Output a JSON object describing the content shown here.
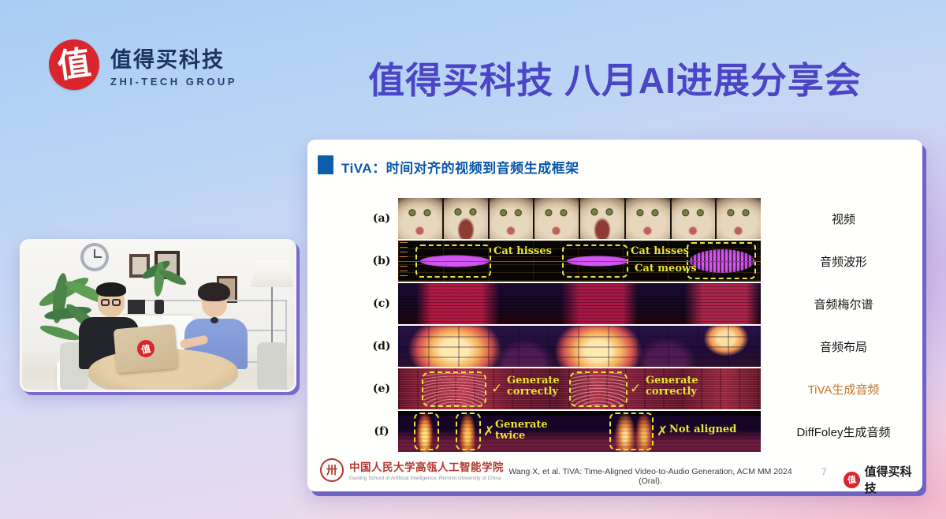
{
  "brand": {
    "logo_char": "值",
    "name_cn": "值得买科技",
    "name_en": "ZHI-TECH GROUP"
  },
  "header": {
    "title": "值得买科技 八月AI进展分享会"
  },
  "webcam": {
    "laptop_logo_char": "值"
  },
  "slide": {
    "title": "TiVA：时间对齐的视频到音频生成框架",
    "figure": {
      "rows": [
        {
          "label": "(a)",
          "caption": "视频"
        },
        {
          "label": "(b)",
          "caption": "音频波形",
          "annotations": [
            "Cat hisses",
            "Cat hisses",
            "Cat meows"
          ]
        },
        {
          "label": "(c)",
          "caption": "音频梅尔谱"
        },
        {
          "label": "(d)",
          "caption": "音频布局"
        },
        {
          "label": "(e)",
          "caption": "TiVA生成音频",
          "mark": "✓",
          "annotations": [
            "Generate correctly",
            "Generate correctly"
          ]
        },
        {
          "label": "(f)",
          "caption": "DiffFoley生成音频",
          "mark": "✗",
          "annotations": [
            "Generate twice",
            "Not aligned"
          ]
        }
      ]
    },
    "footer": {
      "affiliation_seal_glyph": "卅",
      "affiliation_cn": "中国人民大学高瓴人工智能学院",
      "affiliation_en": "Gaoling School of Artificial Intelligence, Renmin University of China",
      "citation": "Wang X, et al. TiVA: Time-Aligned Video-to-Audio Generation, ACM MM 2024 (Oral).",
      "page_number": "7",
      "brand_logo_char": "值",
      "brand_name": "值得买科技"
    }
  },
  "colors": {
    "title_indigo": "#4a46c6",
    "slide_title_blue": "#0a57a9",
    "tiva_caption_orange": "#c8742d",
    "annotation_yellow": "#e9e435",
    "waveform_magenta": "#c94ae0",
    "brand_red": "#d8262c",
    "slide_shadow_purple": "#7163c4"
  }
}
